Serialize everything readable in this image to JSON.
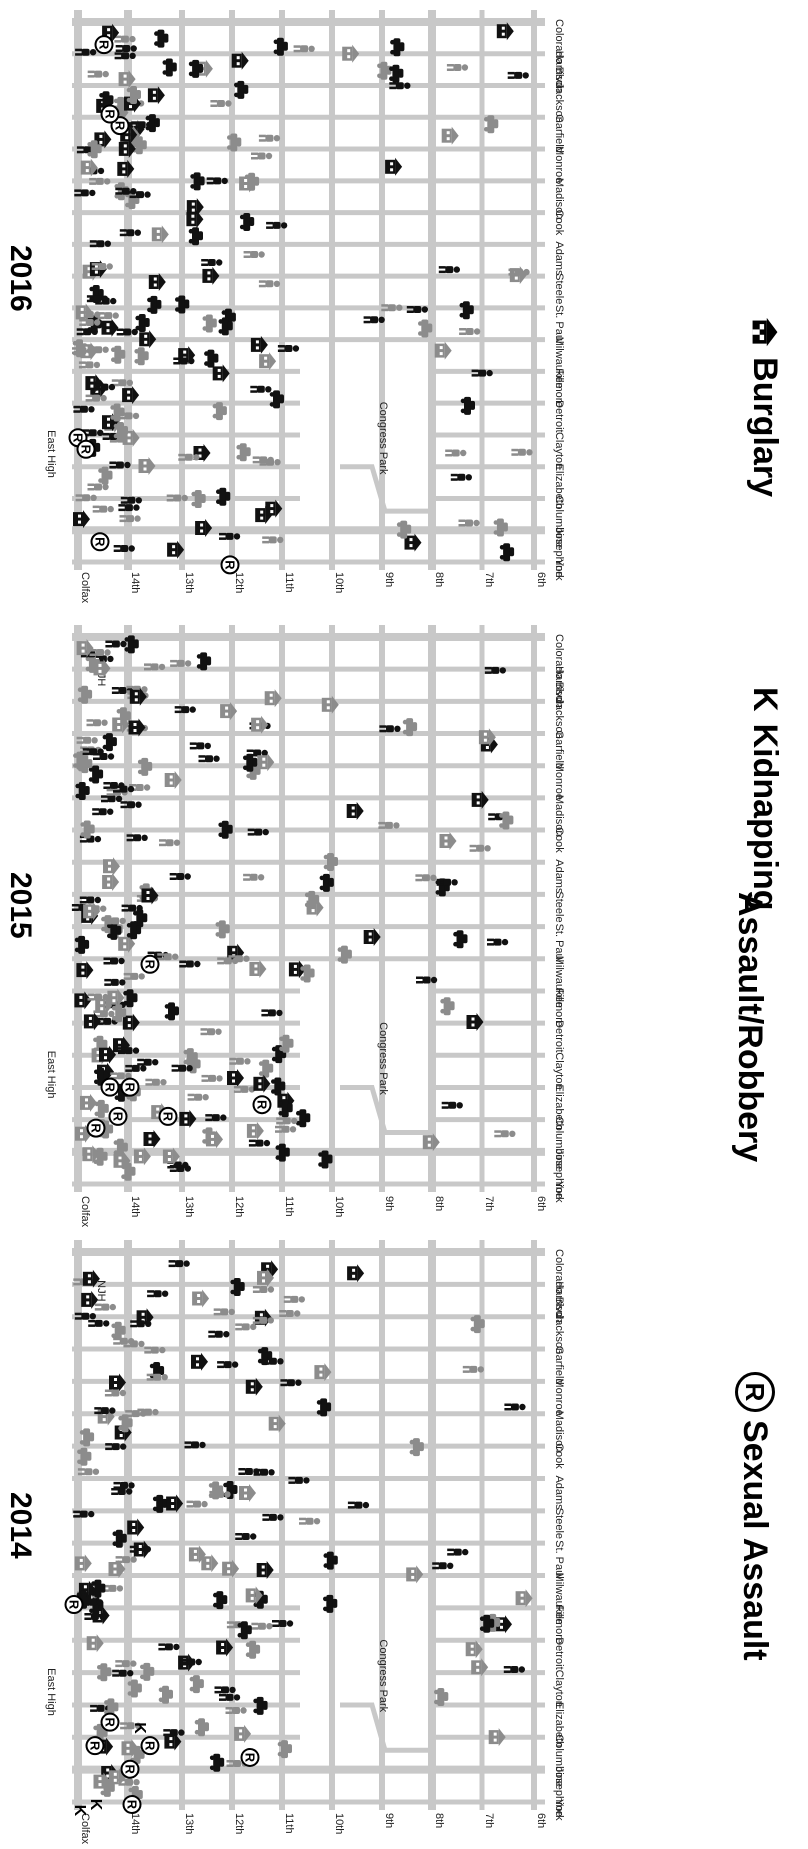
{
  "panels": [
    {
      "year": "2014",
      "labels": [
        "East High",
        "NJH",
        "Congress Park"
      ],
      "ns_streets": [
        "Colorado Blvd",
        "Harrison",
        "Jackson",
        "Garfield",
        "Monroe",
        "Madison",
        "Cook",
        "Adams",
        "Steele",
        "St. Paul",
        "Milwaukee",
        "Fillmore",
        "Detroit",
        "Clayton",
        "Elizabeth",
        "Columbine",
        "Josephine",
        "York"
      ],
      "ew_streets": [
        "Colfax",
        "14th",
        "13th",
        "12th",
        "11th",
        "10th",
        "9th",
        "8th",
        "7th",
        "6th"
      ]
    },
    {
      "year": "2015",
      "labels": [
        "East High",
        "NJH",
        "Congress Park"
      ],
      "ns_streets": [
        "Colorado Blvd",
        "Harrison",
        "Jackson",
        "Garfield",
        "Monroe",
        "Madison",
        "Cook",
        "Adams",
        "Steele",
        "St. Paul",
        "Milwaukee",
        "Fillmore",
        "Detroit",
        "Clayton",
        "Elizabeth",
        "Columbine",
        "Josephine",
        "York"
      ],
      "ew_streets": [
        "Colfax",
        "14th",
        "13th",
        "12th",
        "11th",
        "10th",
        "9th",
        "8th",
        "7th",
        "6th"
      ]
    },
    {
      "year": "2016",
      "labels": [
        "East High",
        "Congress Park"
      ],
      "ns_streets": [
        "Colorado Blvd",
        "Harrison",
        "Jackson",
        "Garfield",
        "Monroe",
        "Madison",
        "Cook",
        "Adams",
        "Steele",
        "St. Paul",
        "Milwaukee",
        "Fillmore",
        "Detroit",
        "Clayton",
        "Elizabeth",
        "Columbine",
        "Josephine",
        "York"
      ],
      "ew_streets": [
        "Colfax",
        "14th",
        "13th",
        "12th",
        "11th",
        "10th",
        "9th",
        "8th",
        "7th",
        "6th"
      ]
    }
  ],
  "legend": {
    "sexual_assault": {
      "symbol": "R",
      "label": "Sexual Assault"
    },
    "kidnapping": {
      "symbol": "K",
      "label": "Kidnapping"
    },
    "assault": {
      "label": "Assault/Robbery"
    },
    "burglary": {
      "label": "Burglary"
    }
  },
  "colors": {
    "street": "#c8c8c8",
    "dark": "#111111",
    "gray": "#8c8c8c"
  },
  "icons": [
    "person-icon",
    "house-icon",
    "car-icon",
    "r-circle-icon",
    "k-letter-icon"
  ]
}
